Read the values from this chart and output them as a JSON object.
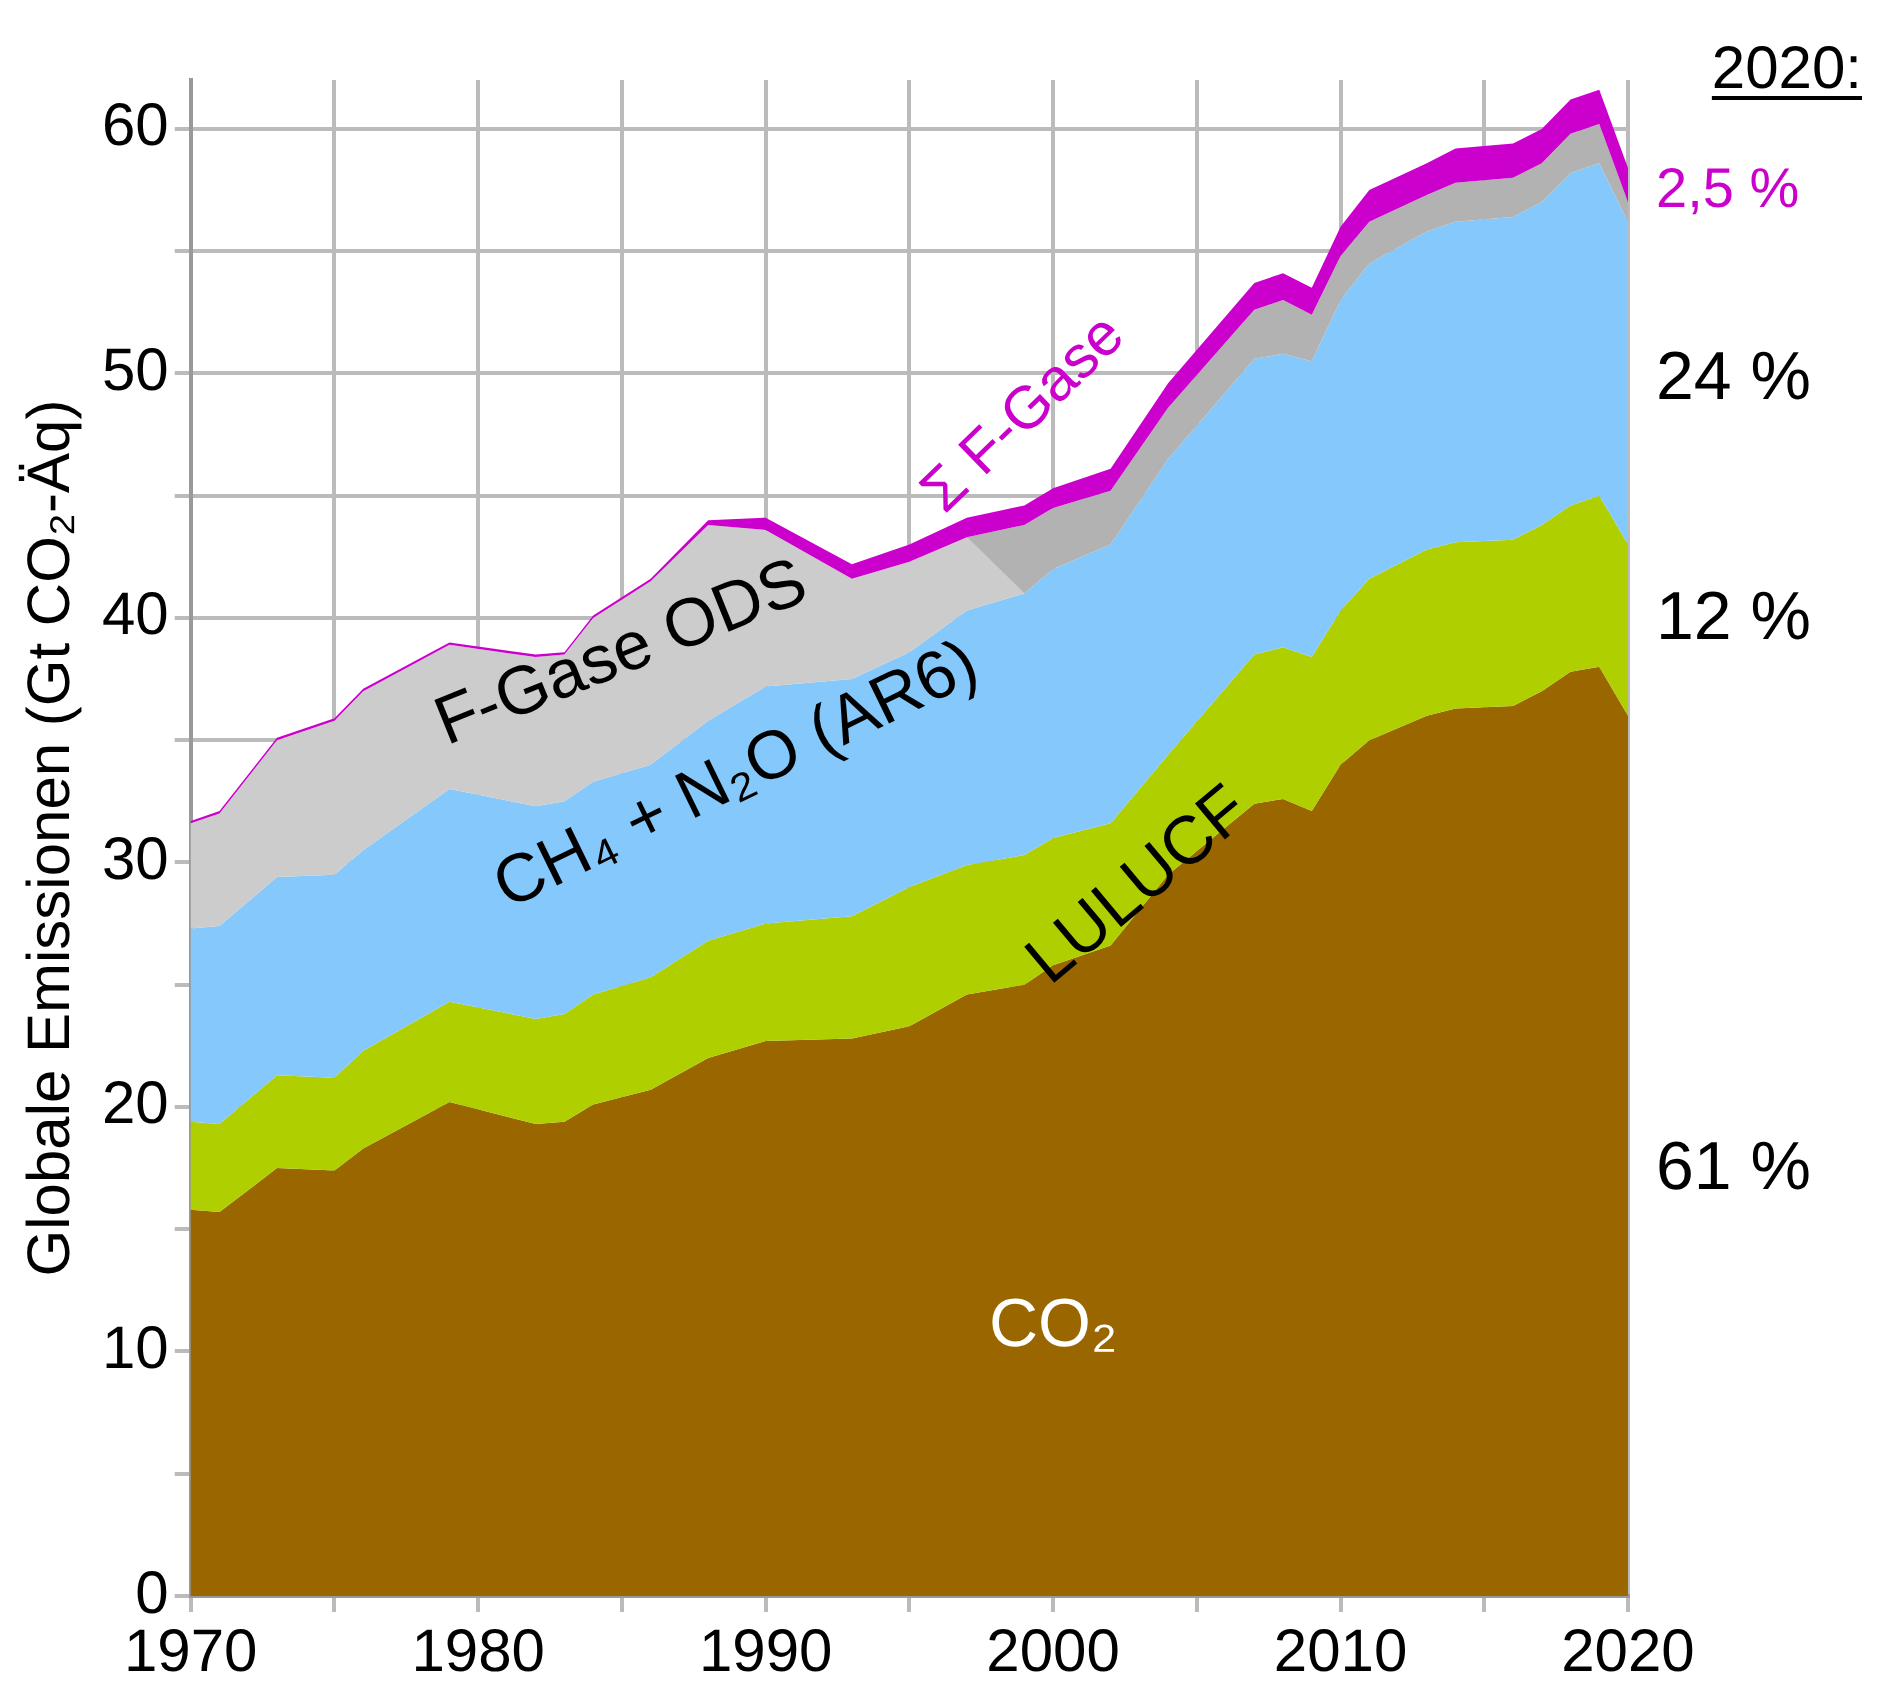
{
  "chart_data": {
    "type": "area",
    "stacked": true,
    "ylabel": "Globale Emissionen (Gt CO₂-Äq)",
    "x": [
      1970,
      1971,
      1973,
      1975,
      1976,
      1979,
      1982,
      1983,
      1984,
      1986,
      1988,
      1990,
      1993,
      1995,
      1997,
      1999,
      2000,
      2002,
      2004,
      2007,
      2008,
      2009,
      2010,
      2011,
      2013,
      2014,
      2016,
      2017,
      2018,
      2019,
      2020
    ],
    "xlim": [
      1970,
      2020
    ],
    "xticks": [
      1970,
      {
        "value": 1975,
        "label": null
      },
      1980,
      {
        "value": 1985,
        "label": null
      },
      1990,
      {
        "value": 1995,
        "label": null
      },
      2000,
      {
        "value": 2005,
        "label": null
      },
      2010,
      {
        "value": 2015,
        "label": null
      },
      2020
    ],
    "ylim": [
      0,
      62
    ],
    "yticks": [
      0,
      {
        "value": 5,
        "label": null
      },
      10,
      {
        "value": 15,
        "label": null
      },
      20,
      {
        "value": 25,
        "label": null
      },
      30,
      {
        "value": 35,
        "label": null
      },
      40,
      {
        "value": 45,
        "label": null
      },
      50,
      {
        "value": 55,
        "label": null
      },
      60
    ],
    "grid": true,
    "legend": false,
    "marker": "none",
    "series": [
      {
        "name": "CO₂",
        "color": "#996600",
        "values": [
          15.8,
          15.7,
          17.5,
          17.4,
          18.3,
          20.2,
          19.3,
          19.4,
          20.1,
          20.7,
          22.0,
          22.7,
          22.8,
          23.3,
          24.6,
          25.0,
          25.8,
          26.6,
          29.5,
          32.4,
          32.6,
          32.1,
          34.0,
          35.0,
          36.0,
          36.3,
          36.4,
          37.0,
          37.8,
          38.0,
          36.0
        ]
      },
      {
        "name": "LULUCF",
        "color": "#afcf00",
        "values": [
          3.6,
          3.6,
          3.8,
          3.8,
          4.0,
          4.1,
          4.3,
          4.4,
          4.5,
          4.6,
          4.8,
          4.8,
          5.0,
          5.7,
          5.3,
          5.3,
          5.2,
          5.0,
          4.9,
          6.1,
          6.2,
          6.3,
          6.3,
          6.6,
          6.8,
          6.8,
          6.8,
          6.8,
          6.8,
          7.0,
          7.0
        ]
      },
      {
        "name": "CH₄ + N₂O (AR6)",
        "color": "#85c8fb",
        "values": [
          7.9,
          8.1,
          8.1,
          8.3,
          8.2,
          8.7,
          8.7,
          8.7,
          8.7,
          8.7,
          9.0,
          9.7,
          9.7,
          9.6,
          10.4,
          10.7,
          11.0,
          11.4,
          12.1,
          12.1,
          12.0,
          12.1,
          12.7,
          12.9,
          13.0,
          13.1,
          13.2,
          13.2,
          13.6,
          13.6,
          13.2
        ]
      },
      {
        "name": "F-Gase ODS",
        "color": "#cccccc",
        "values": [
          4.3,
          4.6,
          5.6,
          6.3,
          6.5,
          5.9,
          6.1,
          6.0,
          6.7,
          7.5,
          8.0,
          6.4,
          4.1,
          3.7,
          3.0,
          0,
          0,
          0,
          0,
          0,
          0,
          0,
          0,
          0,
          0,
          0,
          0,
          0,
          0,
          0,
          0
        ]
      },
      {
        "color": "#b2b2b2",
        "values": [
          0,
          0,
          0,
          0,
          0,
          0,
          0,
          0,
          0,
          0,
          0,
          0,
          0,
          0,
          0,
          2.8,
          2.5,
          2.2,
          2.1,
          2.0,
          2.2,
          1.9,
          1.8,
          1.7,
          1.5,
          1.6,
          1.6,
          1.6,
          1.6,
          1.6,
          0.8
        ]
      },
      {
        "name": "Σ F-Gase",
        "color": "#cc00cc",
        "values": [
          0.1,
          0.1,
          0.1,
          0.1,
          0.1,
          0.1,
          0.1,
          0.1,
          0.1,
          0.1,
          0.2,
          0.5,
          0.6,
          0.7,
          0.8,
          0.8,
          0.8,
          0.9,
          1.0,
          1.1,
          1.1,
          1.1,
          1.2,
          1.3,
          1.3,
          1.4,
          1.4,
          1.4,
          1.4,
          1.4,
          1.4
        ]
      }
    ],
    "annotations": [
      "2020:",
      "2,5 %",
      "24 %",
      "12 %",
      "61 %"
    ]
  }
}
